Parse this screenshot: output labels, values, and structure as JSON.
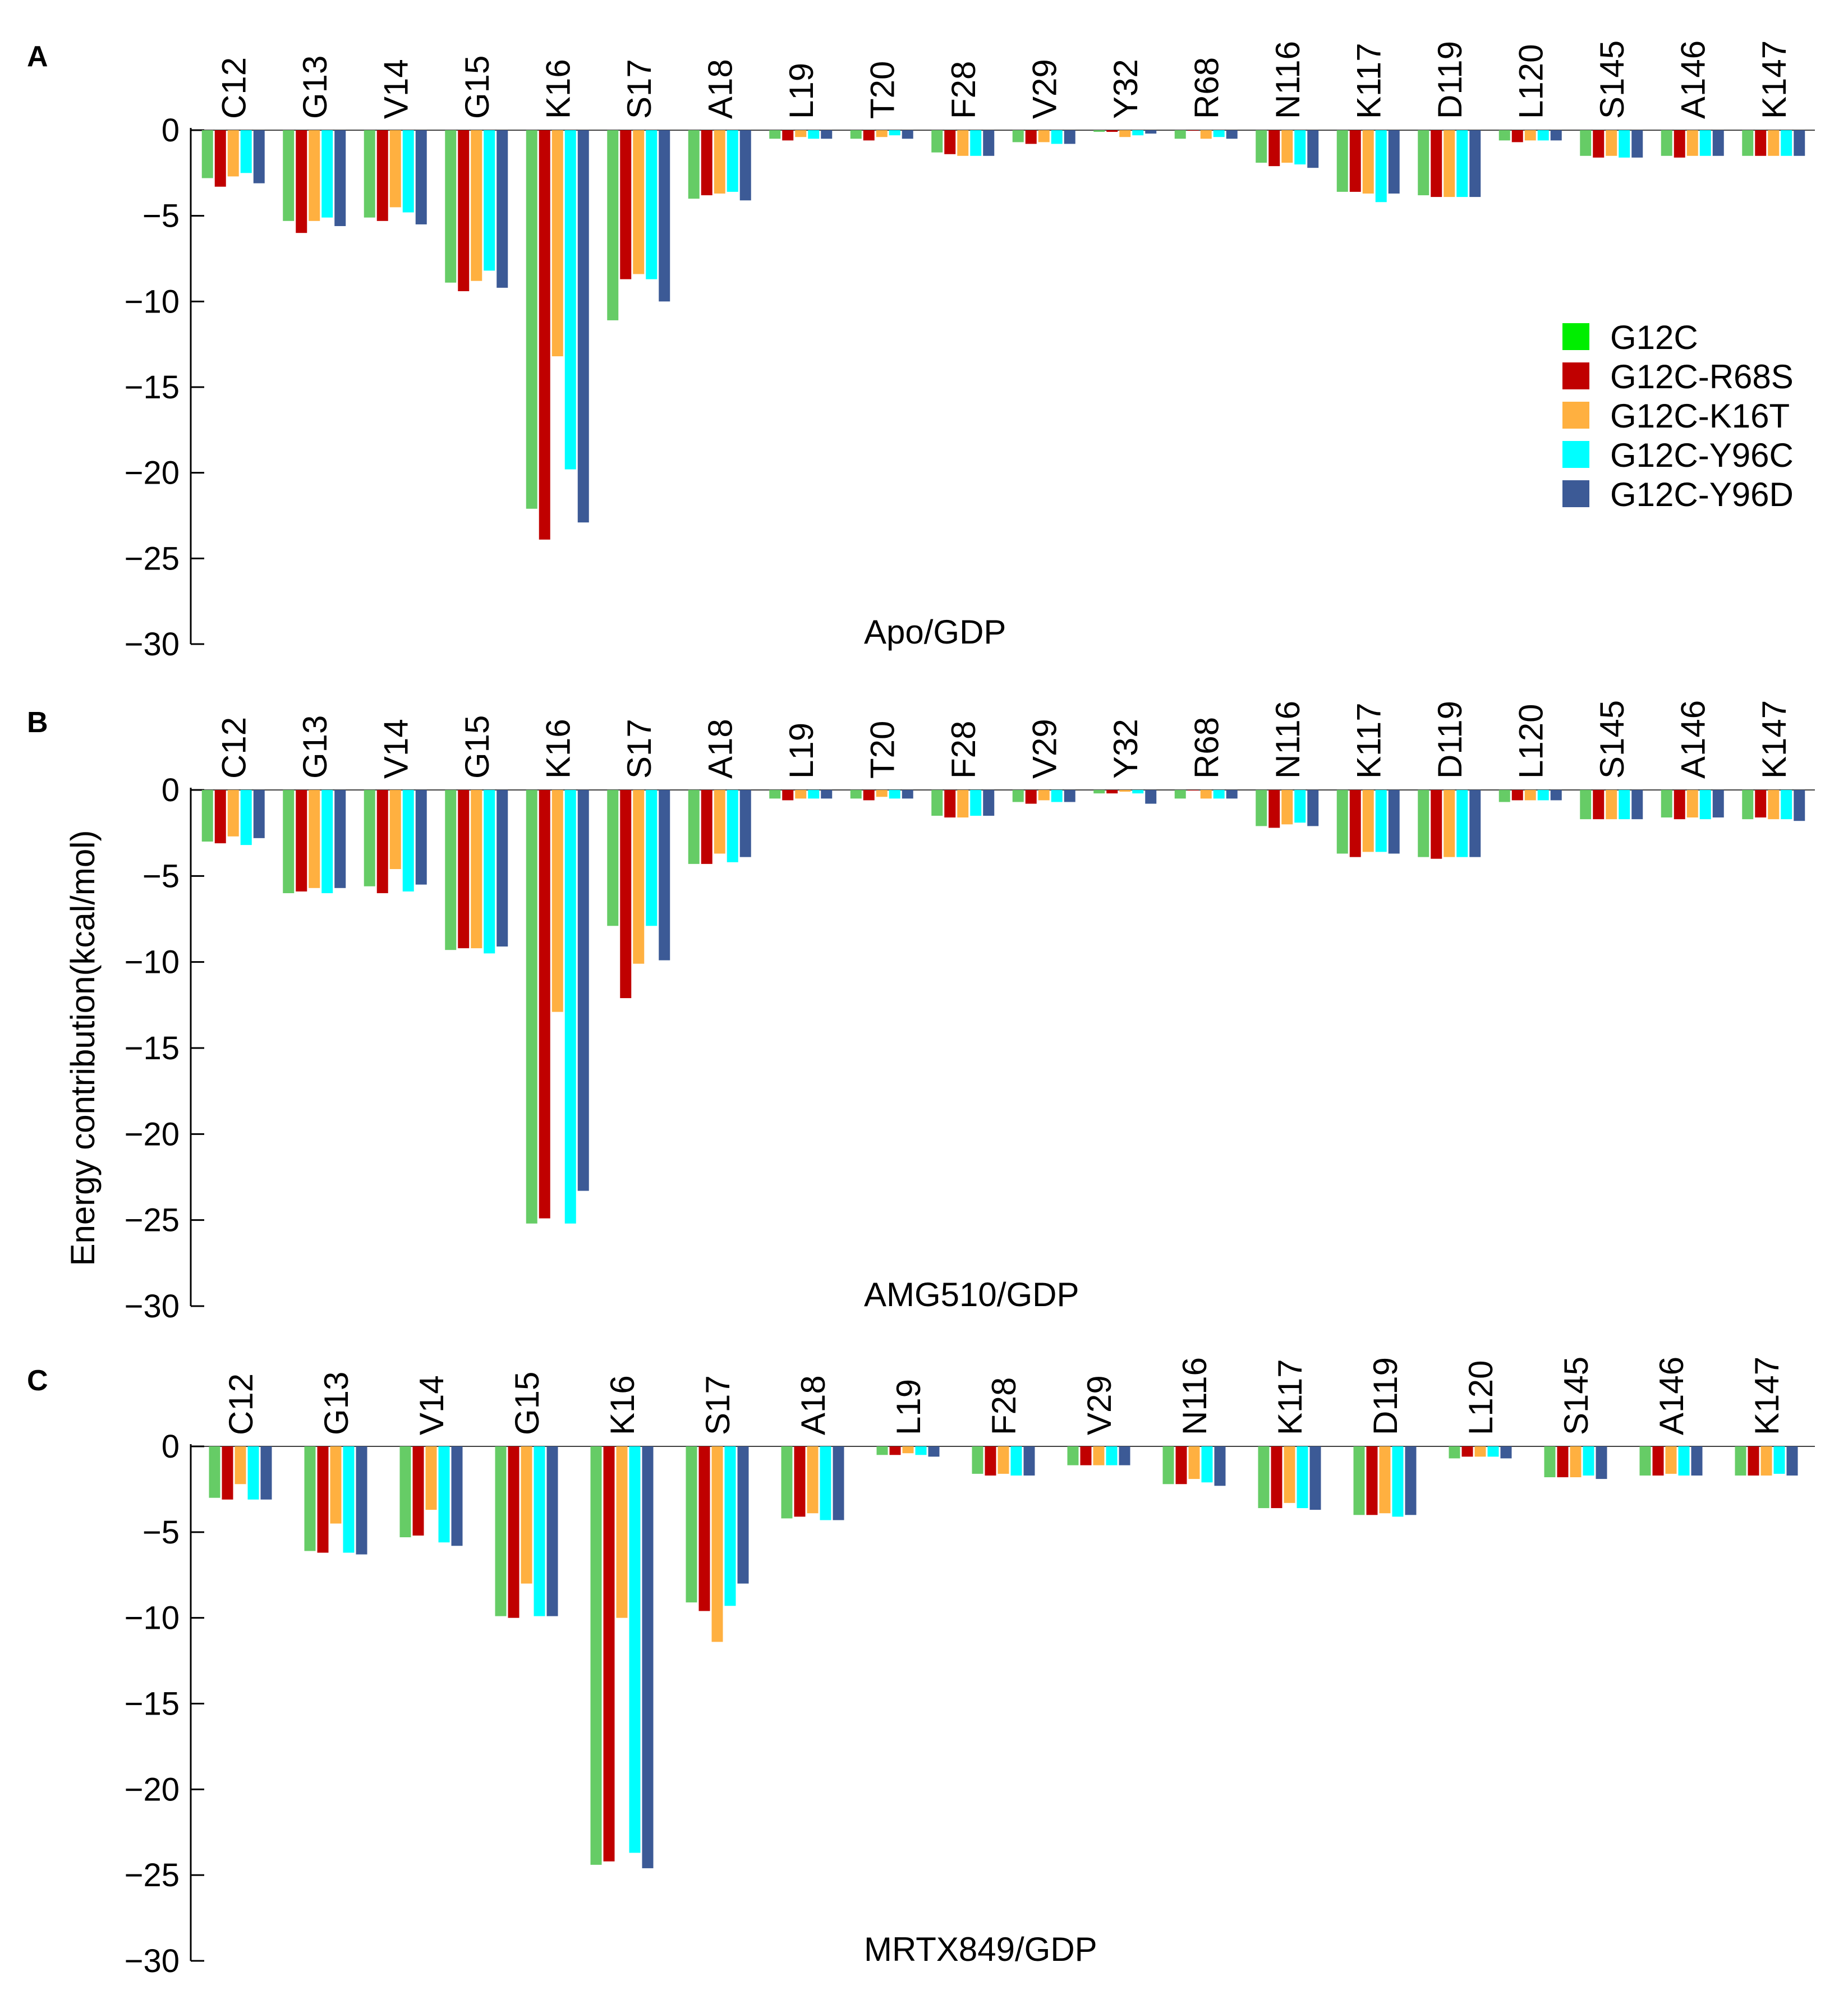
{
  "chart_data": [
    {
      "type": "bar",
      "panel_label": "A",
      "title": "Apo/GDP",
      "xlabel": "",
      "ylabel": "",
      "ylim": [
        -30,
        0
      ],
      "yticks": [
        0,
        -5,
        -10,
        -15,
        -20,
        -25,
        -30
      ],
      "ytick_labels": [
        "0",
        "−5",
        "−10",
        "−15",
        "−20",
        "−25",
        "−30"
      ],
      "grid": false,
      "categories": [
        "C12",
        "G13",
        "V14",
        "G15",
        "K16",
        "S17",
        "A18",
        "L19",
        "T20",
        "F28",
        "V29",
        "Y32",
        "R68",
        "N116",
        "K117",
        "D119",
        "L120",
        "S145",
        "A146",
        "K147"
      ],
      "series": [
        {
          "name": "G12C",
          "values": [
            -2.8,
            -5.3,
            -5.1,
            -8.9,
            -22.1,
            -11.1,
            -4.0,
            -0.5,
            -0.5,
            -1.3,
            -0.7,
            -0.1,
            -0.5,
            -1.9,
            -3.6,
            -3.8,
            -0.6,
            -1.5,
            -1.5,
            -1.5
          ]
        },
        {
          "name": "G12C-R68S",
          "values": [
            -3.3,
            -6.0,
            -5.3,
            -9.4,
            -23.9,
            -8.7,
            -3.8,
            -0.6,
            -0.6,
            -1.4,
            -0.8,
            -0.1,
            0.0,
            -2.1,
            -3.6,
            -3.9,
            -0.7,
            -1.6,
            -1.6,
            -1.5
          ]
        },
        {
          "name": "G12C-K16T",
          "values": [
            -2.7,
            -5.3,
            -4.5,
            -8.8,
            -13.2,
            -8.4,
            -3.7,
            -0.4,
            -0.4,
            -1.5,
            -0.7,
            -0.4,
            -0.5,
            -1.9,
            -3.7,
            -3.9,
            -0.6,
            -1.5,
            -1.5,
            -1.5
          ]
        },
        {
          "name": "G12C-Y96C",
          "values": [
            -2.5,
            -5.1,
            -4.8,
            -8.2,
            -19.8,
            -8.7,
            -3.6,
            -0.5,
            -0.3,
            -1.5,
            -0.8,
            -0.3,
            -0.4,
            -2.0,
            -4.2,
            -3.9,
            -0.6,
            -1.6,
            -1.5,
            -1.5
          ]
        },
        {
          "name": "G12C-Y96D",
          "values": [
            -3.1,
            -5.6,
            -5.5,
            -9.2,
            -22.9,
            -10.0,
            -4.1,
            -0.5,
            -0.5,
            -1.5,
            -0.8,
            -0.2,
            -0.5,
            -2.2,
            -3.7,
            -3.9,
            -0.6,
            -1.6,
            -1.5,
            -1.5
          ]
        }
      ],
      "legend": {
        "placement": "right",
        "entries": [
          {
            "label": "G12C",
            "color": "#00ee00"
          },
          {
            "label": "G12C-R68S",
            "color": "#c00000"
          },
          {
            "label": "G12C-K16T",
            "color": "#ffb040"
          },
          {
            "label": "G12C-Y96C",
            "color": "#00ffff"
          },
          {
            "label": "G12C-Y96D",
            "color": "#3c5a96"
          }
        ]
      }
    },
    {
      "type": "bar",
      "panel_label": "B",
      "title": "AMG510/GDP",
      "xlabel": "",
      "ylabel": "Energy contribution(kcal/mol)",
      "ylim": [
        -30,
        0
      ],
      "yticks": [
        0,
        -5,
        -10,
        -15,
        -20,
        -25,
        -30
      ],
      "ytick_labels": [
        "0",
        "−5",
        "−10",
        "−15",
        "−20",
        "−25",
        "−30"
      ],
      "grid": false,
      "categories": [
        "C12",
        "G13",
        "V14",
        "G15",
        "K16",
        "S17",
        "A18",
        "L19",
        "T20",
        "F28",
        "V29",
        "Y32",
        "R68",
        "N116",
        "K117",
        "D119",
        "L120",
        "S145",
        "A146",
        "K147"
      ],
      "series": [
        {
          "name": "G12C",
          "values": [
            -3.0,
            -6.0,
            -5.6,
            -9.3,
            -25.2,
            -7.9,
            -4.3,
            -0.5,
            -0.5,
            -1.5,
            -0.7,
            -0.2,
            -0.5,
            -2.1,
            -3.7,
            -3.9,
            -0.7,
            -1.7,
            -1.6,
            -1.7
          ]
        },
        {
          "name": "G12C-R68S",
          "values": [
            -3.1,
            -5.9,
            -6.0,
            -9.2,
            -24.9,
            -12.1,
            -4.3,
            -0.6,
            -0.6,
            -1.6,
            -0.8,
            -0.2,
            0.0,
            -2.2,
            -3.9,
            -4.0,
            -0.6,
            -1.7,
            -1.7,
            -1.6
          ]
        },
        {
          "name": "G12C-K16T",
          "values": [
            -2.7,
            -5.7,
            -4.6,
            -9.2,
            -12.9,
            -10.1,
            -3.7,
            -0.5,
            -0.4,
            -1.6,
            -0.6,
            -0.1,
            -0.5,
            -2.0,
            -3.6,
            -3.9,
            -0.6,
            -1.7,
            -1.6,
            -1.7
          ]
        },
        {
          "name": "G12C-Y96C",
          "values": [
            -3.2,
            -6.0,
            -5.9,
            -9.5,
            -25.2,
            -7.9,
            -4.2,
            -0.5,
            -0.5,
            -1.5,
            -0.7,
            -0.2,
            -0.5,
            -1.9,
            -3.6,
            -3.9,
            -0.6,
            -1.7,
            -1.7,
            -1.7
          ]
        },
        {
          "name": "G12C-Y96D",
          "values": [
            -2.8,
            -5.7,
            -5.5,
            -9.1,
            -23.3,
            -9.9,
            -3.9,
            -0.5,
            -0.5,
            -1.5,
            -0.7,
            -0.8,
            -0.5,
            -2.1,
            -3.7,
            -3.9,
            -0.6,
            -1.7,
            -1.6,
            -1.8
          ]
        }
      ]
    },
    {
      "type": "bar",
      "panel_label": "C",
      "title": "MRTX849/GDP",
      "xlabel": "",
      "ylabel": "",
      "ylim": [
        -30,
        0
      ],
      "yticks": [
        0,
        -5,
        -10,
        -15,
        -20,
        -25,
        -30
      ],
      "ytick_labels": [
        "0",
        "−5",
        "−10",
        "−15",
        "−20",
        "−25",
        "−30"
      ],
      "grid": false,
      "categories": [
        "C12",
        "G13",
        "V14",
        "G15",
        "K16",
        "S17",
        "A18",
        "L19",
        "F28",
        "V29",
        "N116",
        "K117",
        "D119",
        "L120",
        "S145",
        "A146",
        "K147"
      ],
      "series": [
        {
          "name": "G12C",
          "values": [
            -3.0,
            -6.1,
            -5.3,
            -9.9,
            -24.4,
            -9.1,
            -4.2,
            -0.5,
            -1.6,
            -1.1,
            -2.2,
            -3.6,
            -4.0,
            -0.7,
            -1.8,
            -1.7,
            -1.7
          ]
        },
        {
          "name": "G12C-R68S",
          "values": [
            -3.1,
            -6.2,
            -5.2,
            -10.0,
            -24.2,
            -9.6,
            -4.1,
            -0.5,
            -1.7,
            -1.1,
            -2.2,
            -3.6,
            -4.0,
            -0.6,
            -1.8,
            -1.7,
            -1.7
          ]
        },
        {
          "name": "G12C-K16T",
          "values": [
            -2.2,
            -4.5,
            -3.7,
            -8.0,
            -10.0,
            -11.4,
            -3.9,
            -0.4,
            -1.6,
            -1.1,
            -1.9,
            -3.3,
            -3.9,
            -0.6,
            -1.8,
            -1.6,
            -1.7
          ]
        },
        {
          "name": "G12C-Y96C",
          "values": [
            -3.1,
            -6.2,
            -5.6,
            -9.9,
            -23.7,
            -9.3,
            -4.3,
            -0.5,
            -1.7,
            -1.1,
            -2.1,
            -3.6,
            -4.1,
            -0.6,
            -1.7,
            -1.7,
            -1.6
          ]
        },
        {
          "name": "G12C-Y96D",
          "values": [
            -3.1,
            -6.3,
            -5.8,
            -9.9,
            -24.6,
            -8.0,
            -4.3,
            -0.6,
            -1.7,
            -1.1,
            -2.3,
            -3.7,
            -4.0,
            -0.7,
            -1.9,
            -1.7,
            -1.7
          ]
        }
      ]
    }
  ],
  "series_colors": [
    "#66cc66",
    "#c00000",
    "#ffb040",
    "#00ffff",
    "#3c5a96"
  ]
}
